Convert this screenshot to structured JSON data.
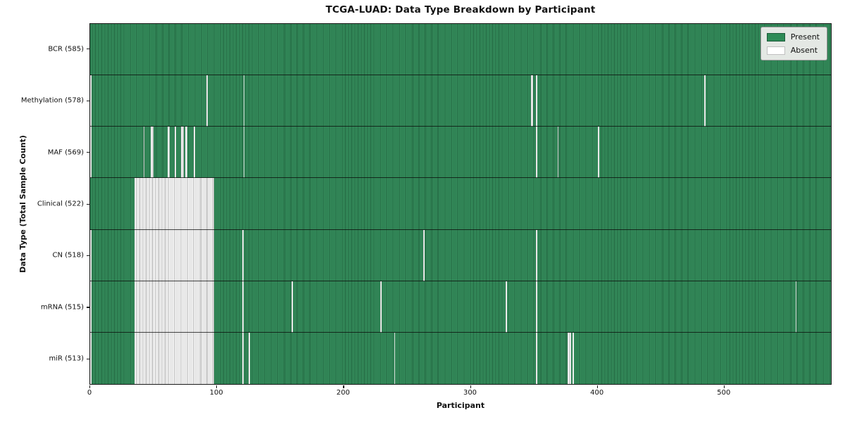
{
  "title": "TCGA-LUAD: Data Type Breakdown by Participant",
  "xlabel": "Participant",
  "ylabel": "Data Type (Total Sample Count)",
  "legend": {
    "present_label": "Present",
    "absent_label": "Absent",
    "position": "upper right"
  },
  "colors": {
    "present": "#2e8b57",
    "present_edge": "#1d5c3a",
    "absent": "#ffffff",
    "absent_edge": "#999999",
    "row_divider": "#1a1a1a",
    "legend_bg": "#e4e8e4",
    "legend_border": "#9a9a9a"
  },
  "chart_data": {
    "type": "heatmap",
    "title": "TCGA-LUAD: Data Type Breakdown by Participant",
    "xlabel": "Participant",
    "ylabel": "Data Type (Total Sample Count)",
    "n_participants": 585,
    "xlim": [
      0,
      585
    ],
    "x_ticks": [
      0,
      100,
      200,
      300,
      400,
      500
    ],
    "grid": false,
    "legend_entries": [
      "Present",
      "Absent"
    ],
    "legend_position": "upper right",
    "value_encoding": {
      "present": 1,
      "absent": 0
    },
    "rows": [
      {
        "label": "BCR (585)",
        "data_type": "BCR",
        "present_count": 585,
        "absent_count": 0,
        "absent_ranges": []
      },
      {
        "label": "Methylation (578)",
        "data_type": "Methylation",
        "present_count": 578,
        "absent_count": 7,
        "absent_ranges": [
          [
            0,
            0
          ],
          [
            92,
            92
          ],
          [
            121,
            121
          ],
          [
            348,
            349
          ],
          [
            352,
            352
          ],
          [
            485,
            485
          ]
        ]
      },
      {
        "label": "MAF (569)",
        "data_type": "MAF",
        "present_count": 569,
        "absent_count": 16,
        "absent_ranges": [
          [
            0,
            0
          ],
          [
            42,
            42
          ],
          [
            48,
            49
          ],
          [
            61,
            62
          ],
          [
            67,
            67
          ],
          [
            72,
            73
          ],
          [
            75,
            76
          ],
          [
            82,
            82
          ],
          [
            121,
            121
          ],
          [
            352,
            352
          ],
          [
            369,
            369
          ],
          [
            401,
            401
          ]
        ]
      },
      {
        "label": "Clinical (522)",
        "data_type": "Clinical",
        "present_count": 522,
        "absent_count": 63,
        "absent_ranges": [
          [
            35,
            97
          ]
        ]
      },
      {
        "label": "CN (518)",
        "data_type": "CN",
        "present_count": 518,
        "absent_count": 67,
        "absent_ranges": [
          [
            0,
            0
          ],
          [
            35,
            97
          ],
          [
            120,
            120
          ],
          [
            263,
            263
          ],
          [
            352,
            352
          ]
        ]
      },
      {
        "label": "mRNA (515)",
        "data_type": "mRNA",
        "present_count": 515,
        "absent_count": 70,
        "absent_ranges": [
          [
            0,
            0
          ],
          [
            35,
            97
          ],
          [
            120,
            120
          ],
          [
            159,
            159
          ],
          [
            229,
            229
          ],
          [
            328,
            328
          ],
          [
            352,
            352
          ],
          [
            557,
            557
          ]
        ]
      },
      {
        "label": "miR (513)",
        "data_type": "miR",
        "present_count": 513,
        "absent_count": 72,
        "absent_ranges": [
          [
            0,
            0
          ],
          [
            35,
            97
          ],
          [
            120,
            120
          ],
          [
            125,
            125
          ],
          [
            240,
            240
          ],
          [
            352,
            352
          ],
          [
            377,
            379
          ],
          [
            381,
            381
          ]
        ]
      }
    ]
  }
}
